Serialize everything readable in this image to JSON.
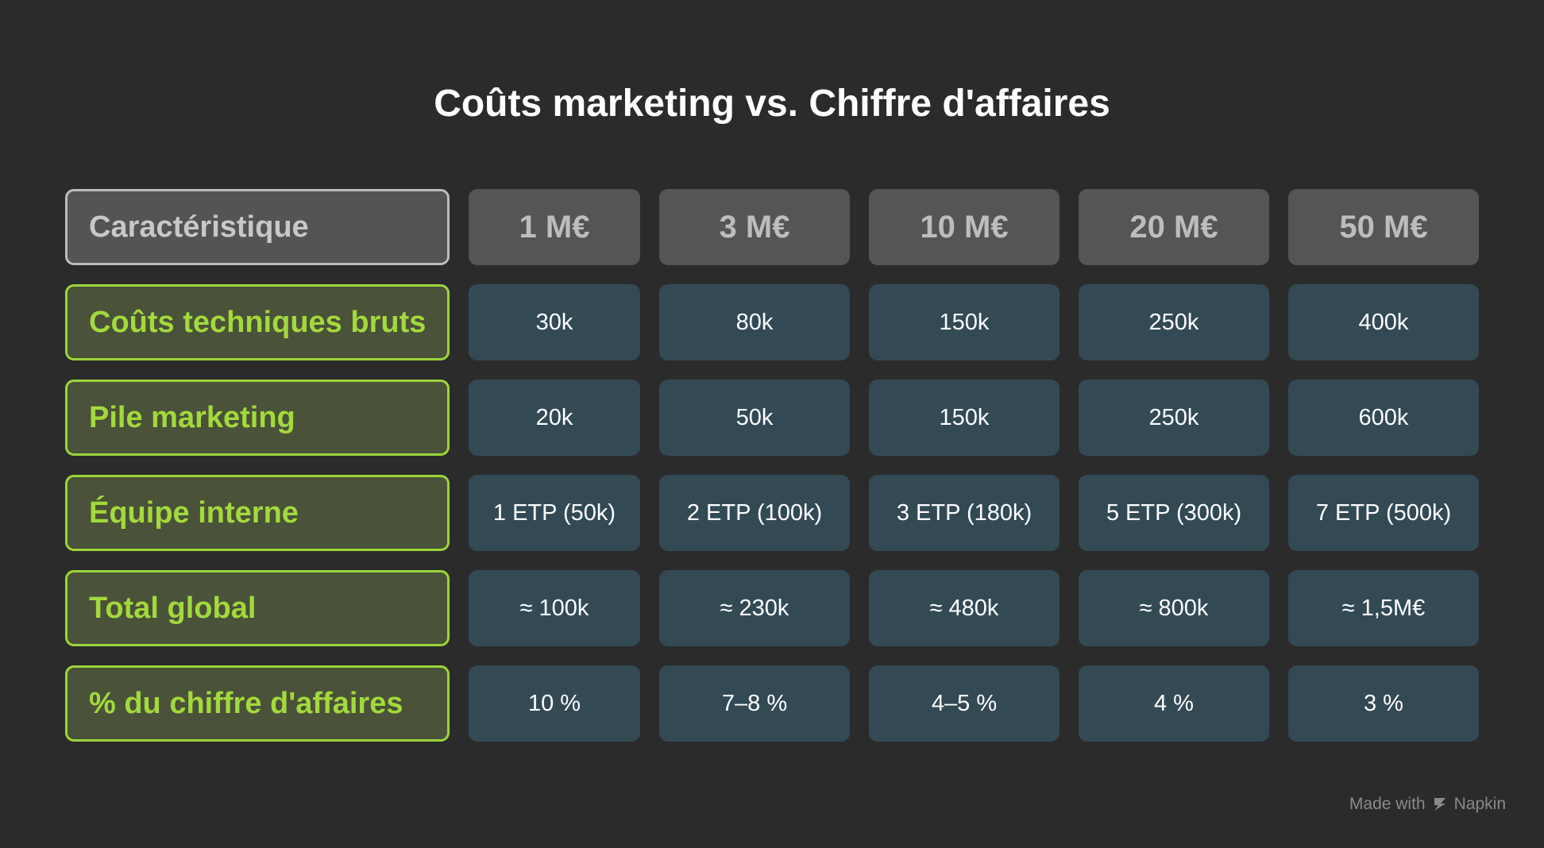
{
  "chart_data": {
    "type": "table",
    "title": "Coûts marketing vs. Chiffre d'affaires",
    "corner_label": "Caractéristique",
    "columns": [
      "1 M€",
      "3 M€",
      "10 M€",
      "20 M€",
      "50 M€"
    ],
    "rows": [
      {
        "label": "Coûts techniques bruts",
        "values": [
          "30k",
          "80k",
          "150k",
          "250k",
          "400k"
        ]
      },
      {
        "label": "Pile marketing",
        "values": [
          "20k",
          "50k",
          "150k",
          "250k",
          "600k"
        ]
      },
      {
        "label": "Équipe interne",
        "values": [
          "1 ETP (50k)",
          "2 ETP (100k)",
          "3 ETP (180k)",
          "5 ETP (300k)",
          "7 ETP (500k)"
        ]
      },
      {
        "label": "Total global",
        "values": [
          "≈ 100k",
          "≈ 230k",
          "≈ 480k",
          "≈ 800k",
          "≈ 1,5M€"
        ]
      },
      {
        "label": "% du chiffre d'affaires",
        "values": [
          "10 %",
          "7–8 %",
          "4–5 %",
          "4 %",
          "3 %"
        ]
      }
    ]
  },
  "branding": {
    "made_with": "Made with",
    "name": "Napkin",
    "icon": "napkin-logo-icon"
  },
  "colors": {
    "background": "#2b2b2b",
    "row_header_accent": "#a3d93c",
    "value_cell": "#334a55",
    "column_header": "#555555"
  }
}
